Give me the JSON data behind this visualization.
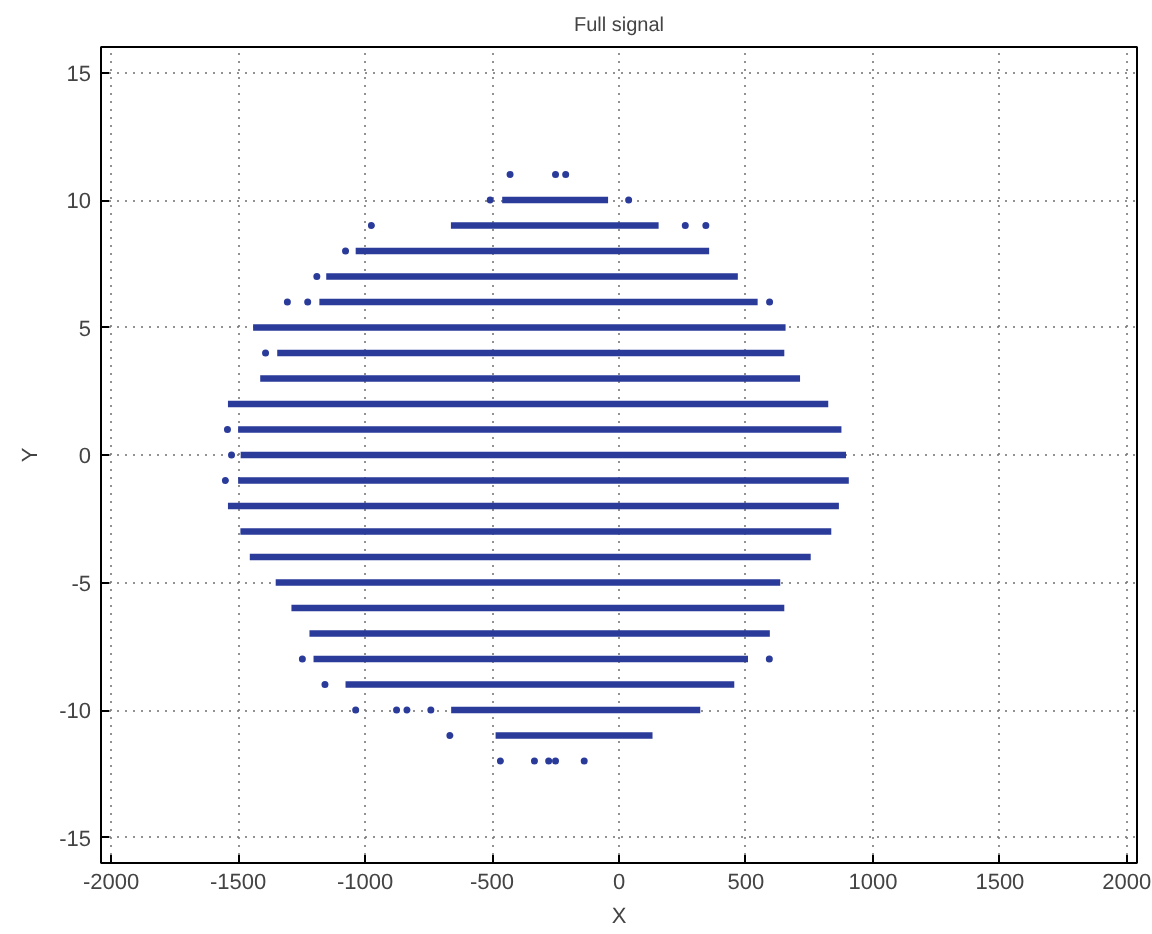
{
  "chart_data": {
    "type": "scatter",
    "title": "Full signal",
    "xlabel": "X",
    "ylabel": "Y",
    "xlim": [
      -2040,
      2040
    ],
    "ylim": [
      -16,
      16
    ],
    "xticks": [
      -2000,
      -1500,
      -1000,
      -500,
      0,
      500,
      1000,
      1500,
      2000
    ],
    "yticks": [
      -15,
      -10,
      -5,
      0,
      5,
      10,
      15
    ],
    "grid": true,
    "series": [
      {
        "type": "line",
        "color": "#2a3b9a",
        "x": [
          -460,
          -43
        ],
        "values": [
          10,
          10
        ]
      },
      {
        "type": "line",
        "color": "#2a3b9a",
        "x": [
          -662,
          156
        ],
        "values": [
          9,
          9
        ]
      },
      {
        "type": "line",
        "color": "#2a3b9a",
        "x": [
          -1037,
          355
        ],
        "values": [
          8,
          8
        ]
      },
      {
        "type": "line",
        "color": "#2a3b9a",
        "x": [
          -1153,
          468
        ],
        "values": [
          7,
          7
        ]
      },
      {
        "type": "line",
        "color": "#2a3b9a",
        "x": [
          -1180,
          546
        ],
        "values": [
          6,
          6
        ]
      },
      {
        "type": "line",
        "color": "#2a3b9a",
        "x": [
          -1441,
          656
        ],
        "values": [
          5,
          5
        ]
      },
      {
        "type": "line",
        "color": "#2a3b9a",
        "x": [
          -1346,
          651
        ],
        "values": [
          4,
          4
        ]
      },
      {
        "type": "line",
        "color": "#2a3b9a",
        "x": [
          -1413,
          713
        ],
        "values": [
          3,
          3
        ]
      },
      {
        "type": "line",
        "color": "#2a3b9a",
        "x": [
          -1540,
          824
        ],
        "values": [
          2,
          2
        ]
      },
      {
        "type": "line",
        "color": "#2a3b9a",
        "x": [
          -1500,
          876
        ],
        "values": [
          1,
          1
        ]
      },
      {
        "type": "line",
        "color": "#2a3b9a",
        "x": [
          -1490,
          894
        ],
        "values": [
          0,
          0
        ]
      },
      {
        "type": "line",
        "color": "#2a3b9a",
        "x": [
          -1500,
          905
        ],
        "values": [
          -1,
          -1
        ]
      },
      {
        "type": "line",
        "color": "#2a3b9a",
        "x": [
          -1540,
          866
        ],
        "values": [
          -2,
          -2
        ]
      },
      {
        "type": "line",
        "color": "#2a3b9a",
        "x": [
          -1491,
          836
        ],
        "values": [
          -3,
          -3
        ]
      },
      {
        "type": "line",
        "color": "#2a3b9a",
        "x": [
          -1454,
          755
        ],
        "values": [
          -4,
          -4
        ]
      },
      {
        "type": "line",
        "color": "#2a3b9a",
        "x": [
          -1352,
          635
        ],
        "values": [
          -5,
          -5
        ]
      },
      {
        "type": "line",
        "color": "#2a3b9a",
        "x": [
          -1290,
          651
        ],
        "values": [
          -6,
          -6
        ]
      },
      {
        "type": "line",
        "color": "#2a3b9a",
        "x": [
          -1219,
          594
        ],
        "values": [
          -7,
          -7
        ]
      },
      {
        "type": "line",
        "color": "#2a3b9a",
        "x": [
          -1203,
          508
        ],
        "values": [
          -8,
          -8
        ]
      },
      {
        "type": "line",
        "color": "#2a3b9a",
        "x": [
          -1077,
          454
        ],
        "values": [
          -9,
          -9
        ]
      },
      {
        "type": "line",
        "color": "#2a3b9a",
        "x": [
          -661,
          320
        ],
        "values": [
          -10,
          -10
        ]
      },
      {
        "type": "line",
        "color": "#2a3b9a",
        "x": [
          -486,
          132
        ],
        "values": [
          -11,
          -11
        ]
      },
      {
        "marker": "circle",
        "color": "#2a3b9a",
        "x": [
          -429,
          -250,
          -210,
          -507,
          38,
          -975,
          261,
          342,
          -1077,
          -1190,
          -1306,
          -1226,
          593,
          -1392,
          -1542,
          -1526,
          -1550,
          -1247,
          592,
          -1158,
          -1037,
          -876,
          -835,
          -741,
          -666,
          -467,
          -333,
          -277,
          -250,
          -137
        ],
        "values": [
          11,
          11,
          11,
          10,
          10,
          9,
          9,
          9,
          8,
          7,
          6,
          6,
          6,
          4,
          1,
          0,
          -1,
          -8,
          -8,
          -9,
          -10,
          -10,
          -10,
          -10,
          -11,
          -12,
          -12,
          -12,
          -12,
          -12
        ]
      }
    ]
  }
}
